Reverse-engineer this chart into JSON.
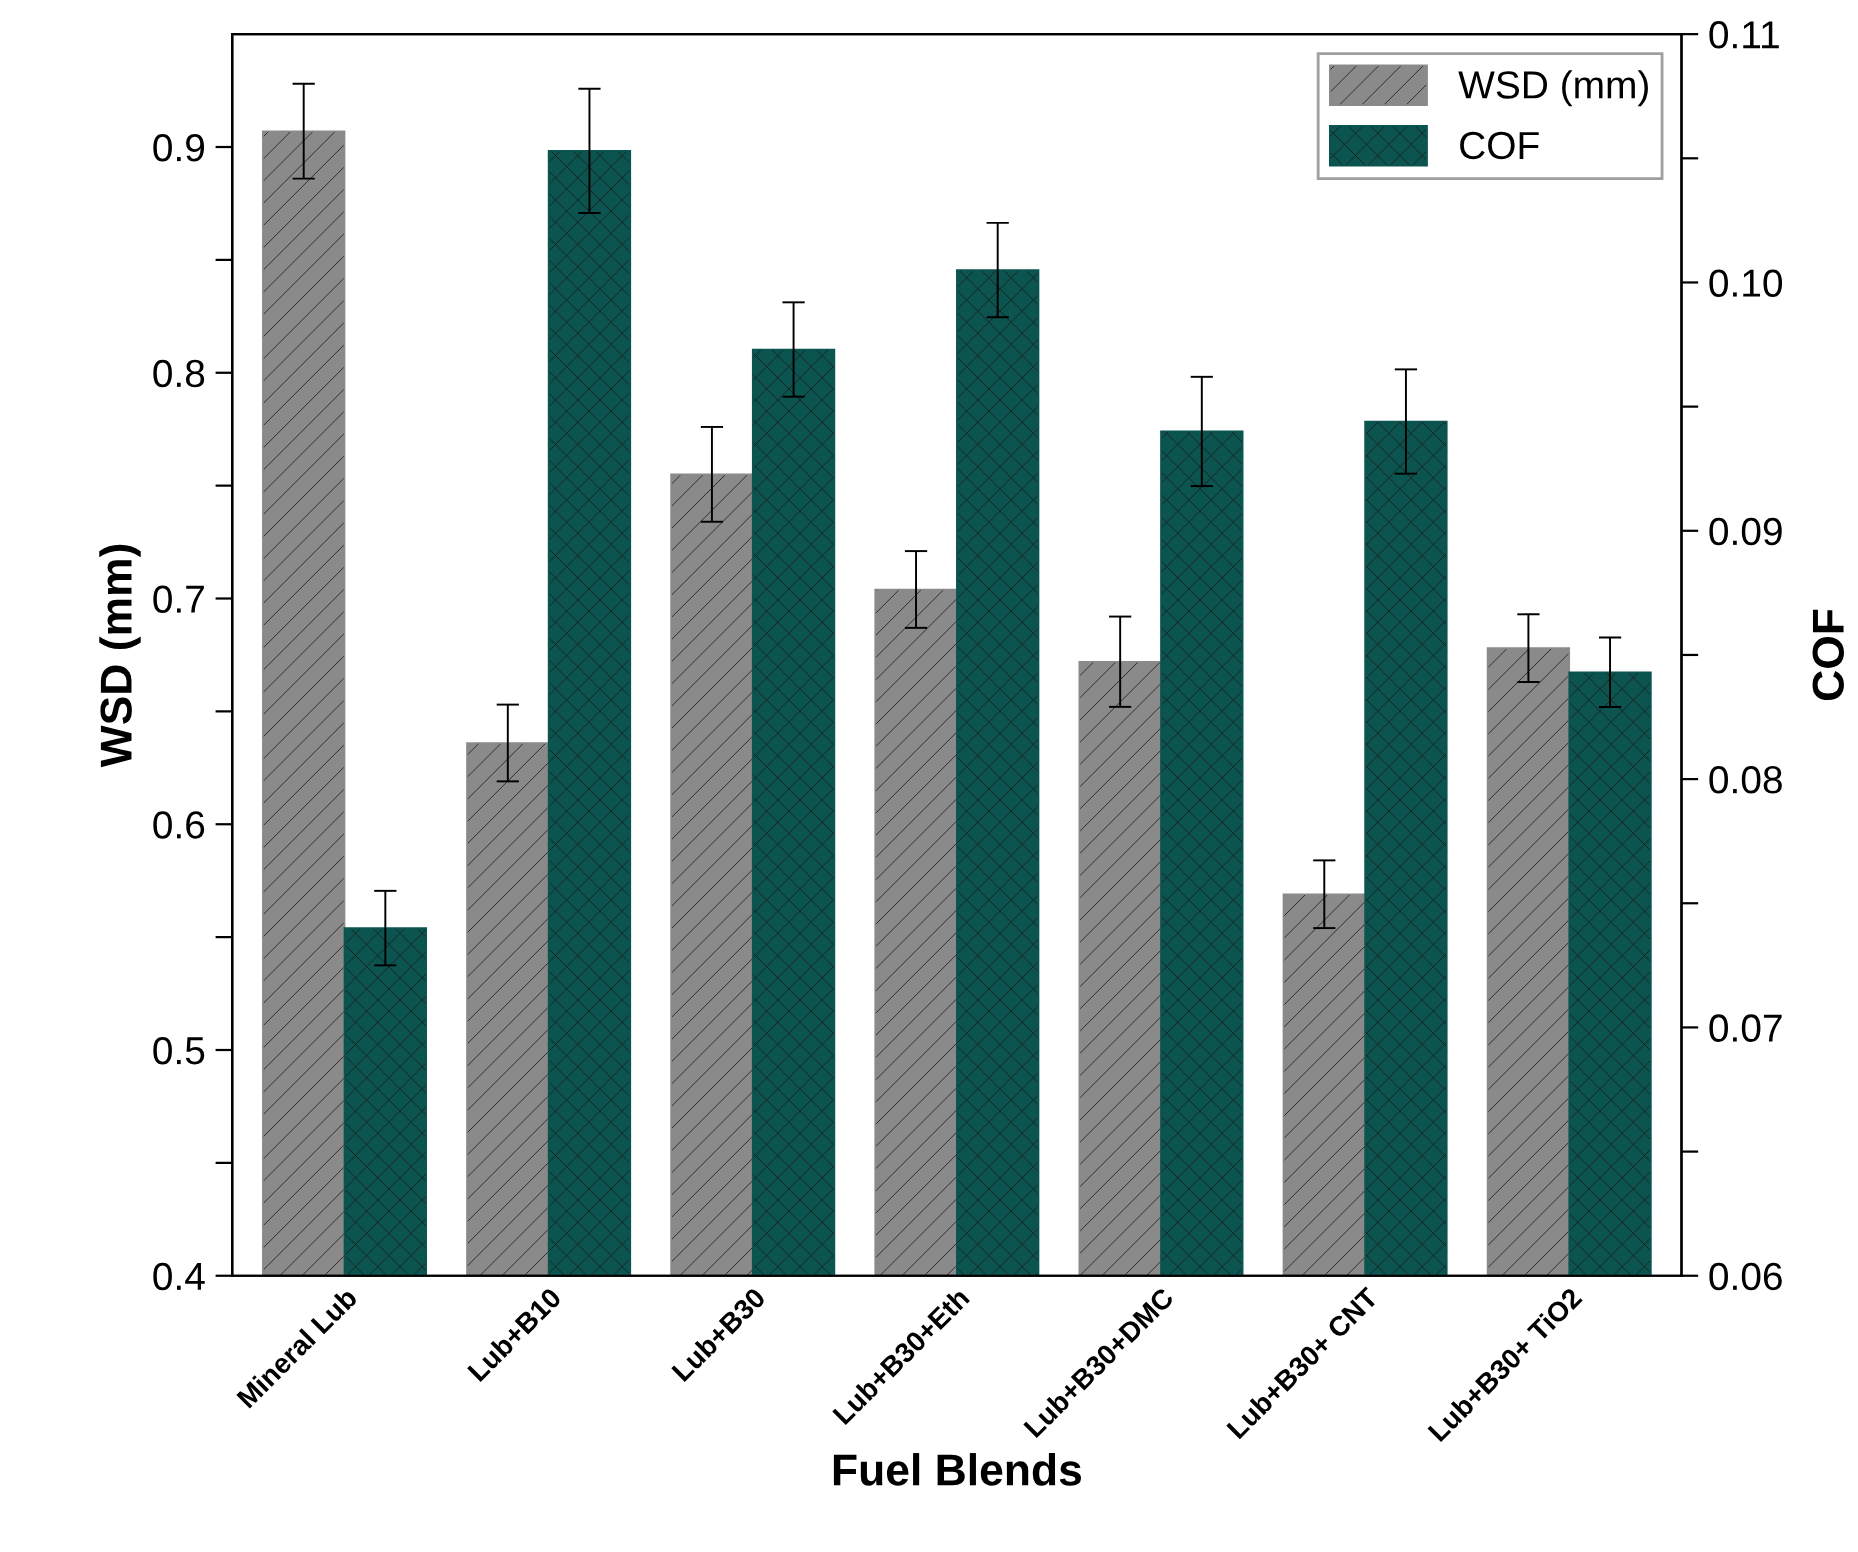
{
  "chart_data": {
    "type": "bar",
    "xlabel": "Fuel Blends",
    "ylabel": "WSD (mm)",
    "y2label": "COF",
    "categories": [
      "Mineral Lub",
      "Lub+B10",
      "Lub+B30",
      "Lub+B30+Eth",
      "Lub+B30+DMC",
      "Lub+B30+ CNT",
      "Lub+B30+ TiO2"
    ],
    "series": [
      {
        "name": "WSD (mm)",
        "color": "#8a8a8a",
        "values": [
          0.907,
          0.636,
          0.755,
          0.704,
          0.672,
          0.569,
          0.678
        ],
        "errors": [
          0.021,
          0.017,
          0.021,
          0.017,
          0.02,
          0.015,
          0.015
        ]
      },
      {
        "name": "COF",
        "color": "#0b5450",
        "axis": "y2",
        "values": [
          0.074,
          0.1053,
          0.0973,
          0.1005,
          0.094,
          0.0944,
          0.0843
        ],
        "errors": [
          0.0015,
          0.0025,
          0.0019,
          0.0019,
          0.0022,
          0.0021,
          0.0014
        ]
      }
    ],
    "ylim": [
      0.4,
      0.95
    ],
    "yticks": [
      0.4,
      {
        "value": 0.45,
        "label": null
      },
      0.5,
      {
        "value": 0.55,
        "label": null
      },
      0.6,
      {
        "value": 0.65,
        "label": null
      },
      0.7,
      {
        "value": 0.75,
        "label": null
      },
      0.8,
      {
        "value": 0.85,
        "label": null
      },
      0.9
    ],
    "y2lim": [
      0.06,
      0.11
    ],
    "y2ticks": [
      {
        "value": 0.06,
        "label": "0.06"
      },
      {
        "value": 0.065,
        "label": null
      },
      {
        "value": 0.07,
        "label": "0.07"
      },
      {
        "value": 0.075,
        "label": null
      },
      {
        "value": 0.08,
        "label": "0.08"
      },
      {
        "value": 0.085,
        "label": null
      },
      {
        "value": 0.09,
        "label": "0.09"
      },
      {
        "value": 0.095,
        "label": null
      },
      {
        "value": 0.1,
        "label": "0.10"
      },
      {
        "value": 0.105,
        "label": null
      },
      {
        "value": 0.11,
        "label": "0.11"
      }
    ],
    "legend": "top right",
    "grid": false
  }
}
